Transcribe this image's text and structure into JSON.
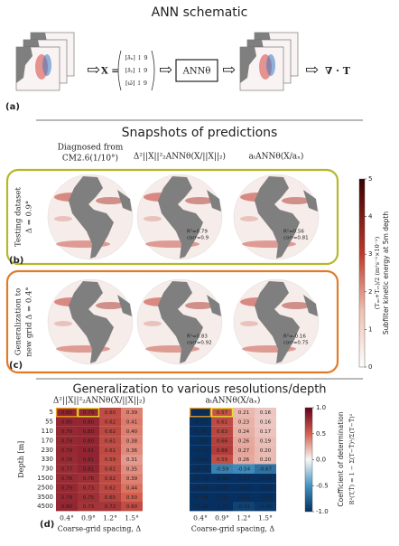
{
  "panel_a": {
    "title": "ANN schematic",
    "tag": "(a)",
    "input_symbol": "X =",
    "vector_entries": [
      "[∂̄ₓ] ↕ 9",
      "[∂̄ᵧ] ↕ 9",
      "[ω̄] ↕ 9"
    ],
    "model": "ANNθ",
    "output": "∇ · T"
  },
  "panel_bc": {
    "title": "Snapshots of predictions",
    "columns": [
      [
        "Diagnosed from",
        "CM2.6(1/10°)"
      ],
      "Δ²||X||²₂ANNθ(X/||X||₂)",
      "aₜANNθ(X/aₓ)"
    ],
    "rows": [
      {
        "tag": "(b)",
        "label": [
          "Testing dataset",
          "Δ = 0.9°"
        ],
        "stats": [
          {
            "r2": "R²=0.79",
            "corr": "corr=0.9"
          },
          {
            "r2": "R²=0.56",
            "corr": "corr=0.81"
          }
        ]
      },
      {
        "tag": "(c)",
        "label": [
          "Generalization to",
          "new grid Δ = 0.4°"
        ],
        "stats": [
          {
            "r2": "R²=0.83",
            "corr": "corr=0.92"
          },
          {
            "r2": "R²=-0.16",
            "corr": "corr=0.75"
          }
        ]
      }
    ],
    "colorbar": {
      "label": "Subfilter kinetic energy at 5m depth",
      "sublabel": "(Tᵤᵤ+Tᵥᵥ)/2 (m²s⁻²×10⁻²)",
      "ticks": [
        0,
        1,
        2,
        3,
        4,
        5
      ]
    }
  },
  "panel_d": {
    "title": "Generalization to various resolutions/depth",
    "tag": "(d)",
    "ylabel": "Depth [m]",
    "depths": [
      "5",
      "55",
      "110",
      "170",
      "230",
      "330",
      "730",
      "1500",
      "2500",
      "3500",
      "4500"
    ],
    "xticks": [
      "0.4°",
      "0.9°",
      "1.2°",
      "1.5°"
    ],
    "xlabel": "Coarse-grid spacing, Δ",
    "heatmaps": [
      {
        "title": "Δ²||X||²₂ANNθ(X/||X||₂)",
        "rows": [
          [
            "0.82",
            "0.79",
            "0.60",
            "0.39"
          ],
          [
            "0.80",
            "0.80",
            "0.62",
            "0.41"
          ],
          [
            "0.79",
            "0.80",
            "0.62",
            "0.40"
          ],
          [
            "0.79",
            "0.80",
            "0.61",
            "0.38"
          ],
          [
            "0.79",
            "0.81",
            "0.61",
            "0.36"
          ],
          [
            "0.78",
            "0.81",
            "0.59",
            "0.31"
          ],
          [
            "0.77",
            "0.81",
            "0.61",
            "0.35"
          ],
          [
            "0.78",
            "0.76",
            "0.62",
            "0.39"
          ],
          [
            "0.79",
            "0.73",
            "0.62",
            "0.44"
          ],
          [
            "0.79",
            "0.75",
            "0.65",
            "0.50"
          ],
          [
            "0.80",
            "0.73",
            "0.72",
            "0.60"
          ]
        ]
      },
      {
        "title": "aₜANNθ(X/aₓ)",
        "rows": [
          [
            "-5.04",
            "0.57",
            "0.21",
            "0.16"
          ],
          [
            "-6.12",
            "0.61",
            "0.23",
            "0.16"
          ],
          [
            "-6.66",
            "0.63",
            "0.24",
            "0.17"
          ],
          [
            "-7.95",
            "0.66",
            "0.26",
            "0.19"
          ],
          [
            "-10.25",
            "0.68",
            "0.27",
            "0.20"
          ],
          [
            "-19.64",
            "0.59",
            "0.26",
            "0.20"
          ],
          [
            "-39.71",
            "-0.59",
            "-0.54",
            "-0.67"
          ],
          [
            "-51.13",
            "-2.58",
            "-2.22",
            "-2.34"
          ],
          [
            "-49.98",
            "-2.47",
            "-2.60",
            "-2.14"
          ],
          [
            "-47.05",
            "-2.03",
            "-1.71",
            "-1.83"
          ],
          [
            "-51.60",
            "-1.41",
            "-0.91",
            "-0.96"
          ]
        ]
      }
    ],
    "colorbar": {
      "label": "Coefficient of determination",
      "formula": "R²(T,T̂) = 1 − Σ(T−T̂)²/Σ(T−T̄)²",
      "ticks": [
        {
          "value": -1,
          "label": "-1.0"
        },
        {
          "value": -0.5,
          "label": "-0.5"
        },
        {
          "value": 0,
          "label": "0.0"
        },
        {
          "value": 0.5,
          "label": "0.5"
        },
        {
          "value": 1,
          "label": "1.0"
        }
      ]
    }
  }
}
